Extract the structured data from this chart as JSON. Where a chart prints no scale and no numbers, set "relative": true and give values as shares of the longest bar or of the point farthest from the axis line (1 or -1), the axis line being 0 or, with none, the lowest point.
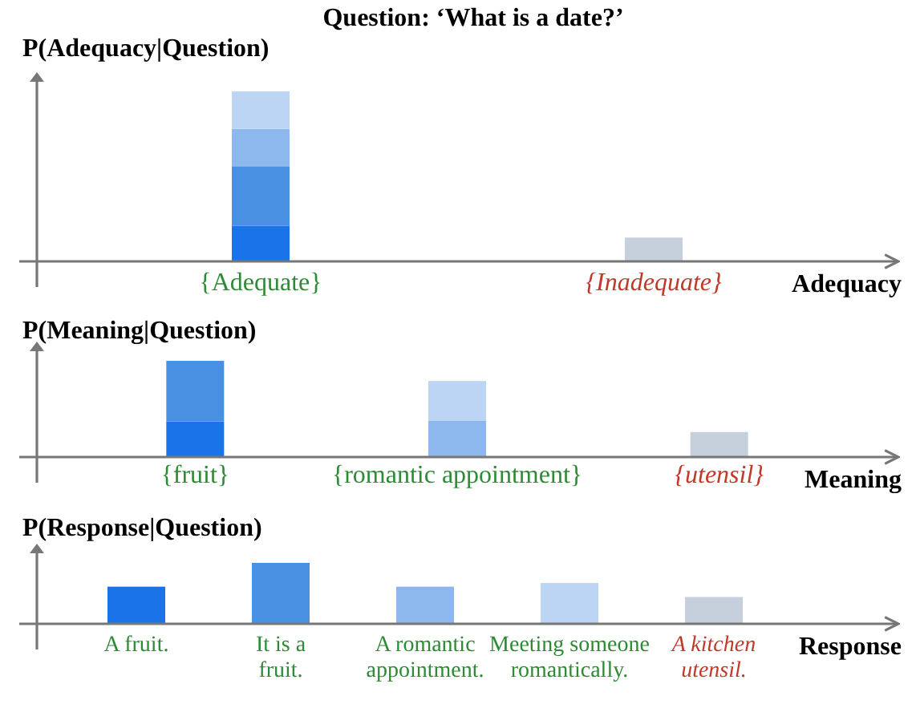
{
  "chart_data": [
    {
      "type": "bar",
      "title": "Question: ‘What is a date?’",
      "ylabel": "P(Adequacy|Question)",
      "xlabel": "Adequacy",
      "relative": true,
      "stacked": true,
      "legend": false,
      "categories": [
        "{Adequate}",
        "{Inadequate}"
      ],
      "series": [
        {
          "color": "#1a73e8",
          "values": [
            0.21,
            null
          ]
        },
        {
          "color": "#4a90e2",
          "values": [
            0.35,
            null
          ]
        },
        {
          "color": "#8cb8ee",
          "values": [
            0.22,
            null
          ]
        },
        {
          "color": "#bcd5f4",
          "values": [
            0.22,
            null
          ]
        },
        {
          "color": "#c6d0dd",
          "values": [
            null,
            0.14
          ]
        }
      ]
    },
    {
      "type": "bar",
      "ylabel": "P(Meaning|Question)",
      "xlabel": "Meaning",
      "relative": true,
      "stacked": true,
      "legend": false,
      "categories": [
        "{fruit}",
        "{romantic appointment}",
        "{utensil}"
      ],
      "series": [
        {
          "color": "#1a73e8",
          "values": [
            0.37,
            null,
            null
          ]
        },
        {
          "color": "#4a90e2",
          "values": [
            0.63,
            null,
            null
          ]
        },
        {
          "color": "#8cb8ee",
          "values": [
            null,
            0.38,
            null
          ]
        },
        {
          "color": "#bcd5f4",
          "values": [
            null,
            0.41,
            null
          ]
        },
        {
          "color": "#c6d0dd",
          "values": [
            null,
            null,
            0.26
          ]
        }
      ]
    },
    {
      "type": "bar",
      "ylabel": "P(Response|Question)",
      "xlabel": "Response",
      "relative": true,
      "stacked": true,
      "legend": false,
      "categories": [
        "A fruit.",
        "It is a fruit.",
        "A romantic appointment.",
        "Meeting someone romantically.",
        "A kitchen utensil."
      ],
      "series": [
        {
          "color": "#1a73e8",
          "values": [
            0.61,
            null,
            null,
            null,
            null
          ]
        },
        {
          "color": "#4a90e2",
          "values": [
            null,
            1,
            null,
            null,
            null
          ]
        },
        {
          "color": "#8cb8ee",
          "values": [
            null,
            null,
            0.61,
            null,
            null
          ]
        },
        {
          "color": "#bcd5f4",
          "values": [
            null,
            null,
            null,
            0.67,
            null
          ]
        },
        {
          "color": "#c6d0dd",
          "values": [
            null,
            null,
            null,
            null,
            0.44
          ]
        }
      ]
    }
  ]
}
